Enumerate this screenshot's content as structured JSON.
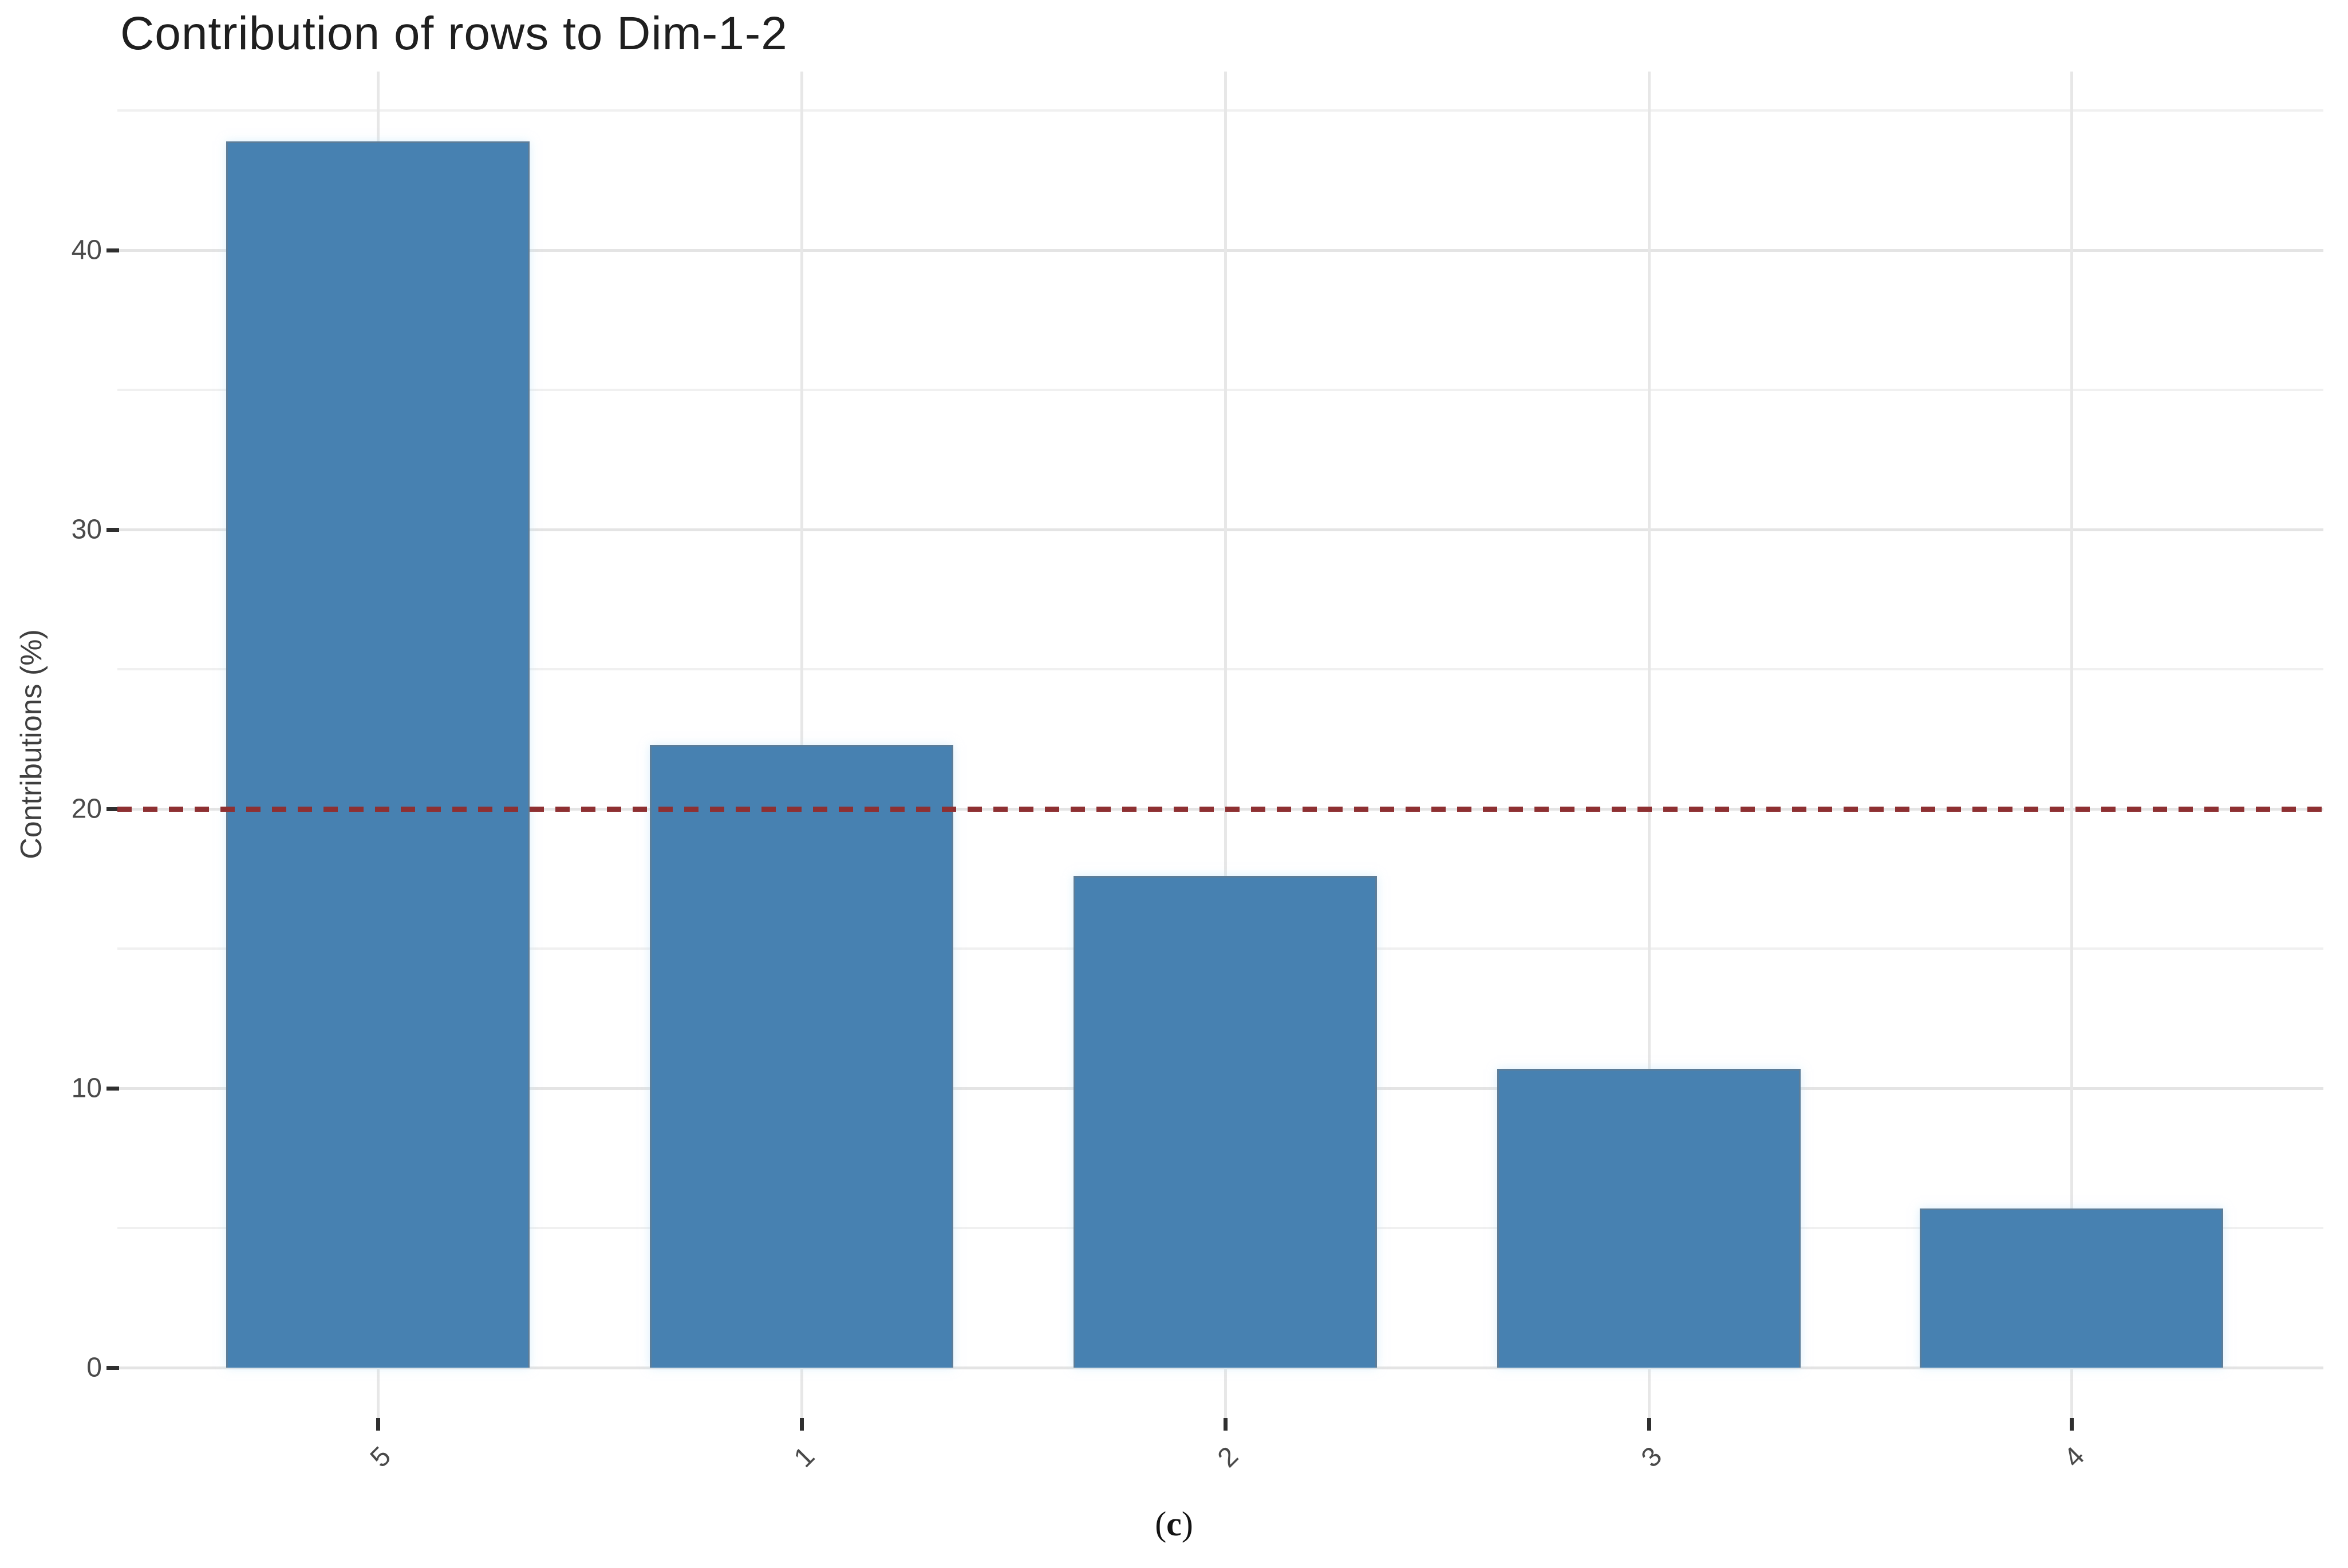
{
  "title": "Contribution of rows to Dim-1-2",
  "y_axis": {
    "label": "Contributions (%)",
    "major_ticks": [
      0,
      10,
      20,
      30,
      40
    ],
    "minor_ticks": [
      5,
      15,
      25,
      35,
      45
    ]
  },
  "x_axis": {
    "categories": [
      "5",
      "1",
      "2",
      "3",
      "4"
    ]
  },
  "caption": {
    "open": "(",
    "letter": "c",
    "close": ")"
  },
  "colors": {
    "bar_fill": "#4781b1",
    "bar_edge": "#5d7d98",
    "reference_line": "#8e3032",
    "grid_major": "#e4e4e4",
    "grid_minor": "#f0f0f0",
    "tick_mark": "#2f2f2f",
    "tick_text": "#4a4a4a",
    "title_text": "#1f1f1f"
  },
  "chart_data": {
    "type": "bar",
    "title": "Contribution of rows to Dim-1-2",
    "xlabel": "",
    "ylabel": "Contributions (%)",
    "categories": [
      "5",
      "1",
      "2",
      "3",
      "4"
    ],
    "values": [
      43.9,
      22.3,
      17.6,
      10.7,
      5.7
    ],
    "ylim": [
      0,
      45.9
    ],
    "y_major_step": 10,
    "y_minor_step": 5,
    "reference_line": {
      "value": 20,
      "style": "dashed",
      "color": "#8e3032"
    },
    "grid": true,
    "legend": false,
    "x_label_angle": 45,
    "bar_color": "#4781b1"
  }
}
